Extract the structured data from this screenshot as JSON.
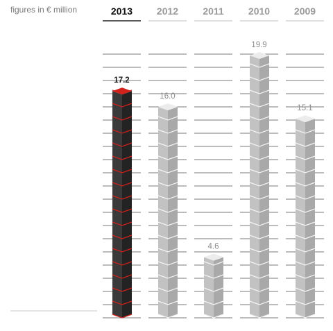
{
  "unit_label": "figures in € million",
  "colors": {
    "highlight_dark": "#3a3a3a",
    "highlight_accent": "#d0211b",
    "bar_front": "#c2c2c2",
    "bar_side": "#a9a9a9",
    "bar_top": "#ececec",
    "grid": "#7a7a7a",
    "text_dark": "#1a1a1a",
    "text_muted": "#8c8c8c"
  },
  "chart_data": {
    "type": "bar",
    "categories": [
      "2013",
      "2012",
      "2011",
      "2010",
      "2009"
    ],
    "values": [
      17.2,
      16.0,
      4.6,
      19.9,
      15.1
    ],
    "value_labels": [
      "17.2",
      "16.0",
      "4.6",
      "19.9",
      "15.1"
    ],
    "highlighted_category": "2013",
    "title": "",
    "xlabel": "",
    "ylabel": "",
    "ylim": [
      0,
      20
    ],
    "grid": true,
    "legend": "none"
  }
}
